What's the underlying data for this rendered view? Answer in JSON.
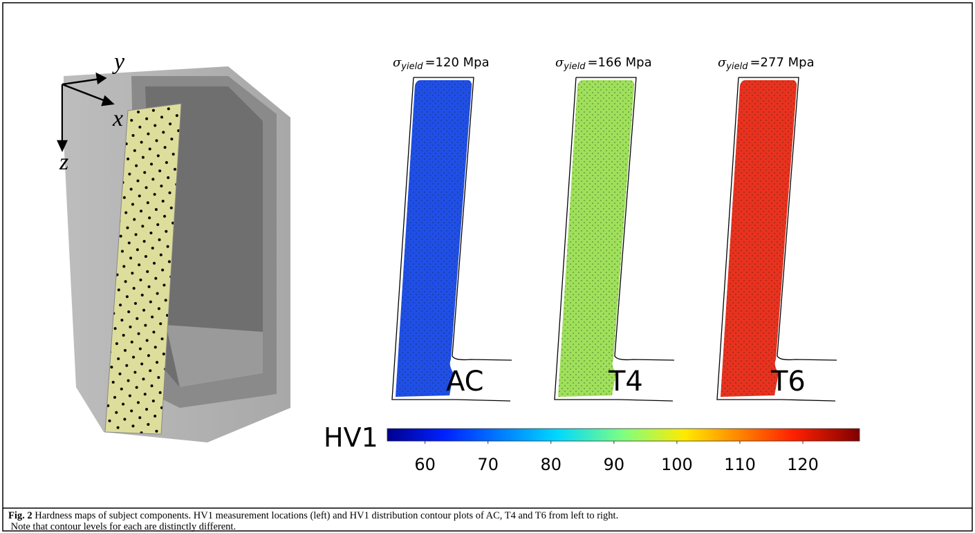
{
  "figure": {
    "axes": {
      "y": "y",
      "x": "x",
      "z": "z"
    },
    "panels": [
      {
        "sigma": "σ",
        "subscript": "yield",
        "value": "=120 Mpa",
        "label": "AC",
        "color": "#1f4fe6"
      },
      {
        "sigma": "σ",
        "subscript": "yield",
        "value": "=166 Mpa",
        "label": "T4",
        "color": "#9fe05a"
      },
      {
        "sigma": "σ",
        "subscript": "yield",
        "value": "=277 Mpa",
        "label": "T6",
        "color": "#e8321e"
      }
    ],
    "colorbar": {
      "label": "HV1",
      "lim": [
        54,
        129
      ],
      "ticks": [
        60,
        70,
        80,
        90,
        100,
        110,
        120
      ]
    }
  },
  "caption": {
    "label": "Fig. 2",
    "line1": "Hardness maps of subject components. HV1 measurement locations (left) and HV1 distribution contour plots of AC, T4 and T6 from left to right.",
    "line2": "Note that contour levels for each are distinctly different."
  }
}
